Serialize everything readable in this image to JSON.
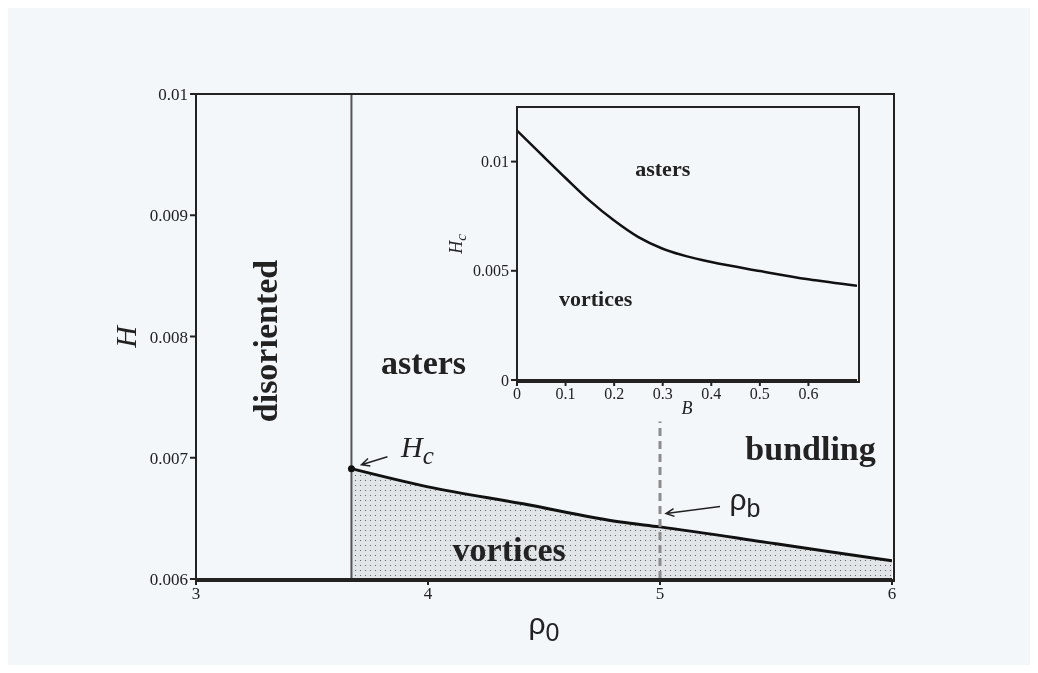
{
  "chart_data": [
    {
      "type": "line",
      "xlabel": "ρ$_{0}$",
      "ylabel": "H",
      "xlim": [
        3,
        6
      ],
      "xticks": [
        3,
        4,
        5,
        6
      ],
      "ylim": [
        0.006,
        0.01
      ],
      "yticks": [
        0.006,
        0.007,
        0.008,
        0.009,
        0.01
      ],
      "series": [
        {
          "type": "area",
          "color": "#111111",
          "x": [
            3.67,
            4,
            4.41,
            4.83,
            5,
            5.5,
            6
          ],
          "values": [
            0.00691,
            0.00676,
            0.00662,
            0.00647,
            0.00643,
            0.00629,
            0.00615
          ]
        },
        {
          "color": "#8c8c8c",
          "line_style": "dashed",
          "x": [
            5,
            5
          ],
          "values": [
            0.006,
            0.0073
          ]
        },
        {
          "type": "scatter",
          "color": "#111111",
          "marker": "circle",
          "x": [
            3.67
          ],
          "values": [
            0.00691
          ]
        }
      ],
      "ref_lines": [
        {
          "axis": "x",
          "value": 3.67,
          "color": "#555555"
        }
      ],
      "annotations": [
        "disoriented",
        "asters",
        "vortices",
        "bundling",
        {
          "text": "H$_{c}$",
          "x": 3.67,
          "y": 0.00691
        },
        {
          "text": "ρ$_{b}$",
          "x": 5,
          "y": 0.00654
        }
      ]
    },
    {
      "type": "line",
      "xlabel": "B",
      "ylabel": "H$_{c}$",
      "xlim": [
        0,
        0.7
      ],
      "xticks": [
        0,
        0.1,
        0.2,
        0.3,
        0.4,
        0.5,
        0.6
      ],
      "ylim": [
        0,
        0.0125
      ],
      "yticks": [
        0,
        0.005,
        0.01
      ],
      "series": [
        {
          "color": "#111111",
          "x": [
            0,
            0.05,
            0.1,
            0.15,
            0.2,
            0.25,
            0.3,
            0.35,
            0.4,
            0.5,
            0.6,
            0.7
          ],
          "values": [
            0.01142,
            0.01033,
            0.00925,
            0.0082,
            0.0073,
            0.00654,
            0.00601,
            0.00566,
            0.0054,
            0.00499,
            0.00461,
            0.00431
          ]
        }
      ],
      "annotations": [
        "asters",
        "vortices"
      ]
    }
  ]
}
